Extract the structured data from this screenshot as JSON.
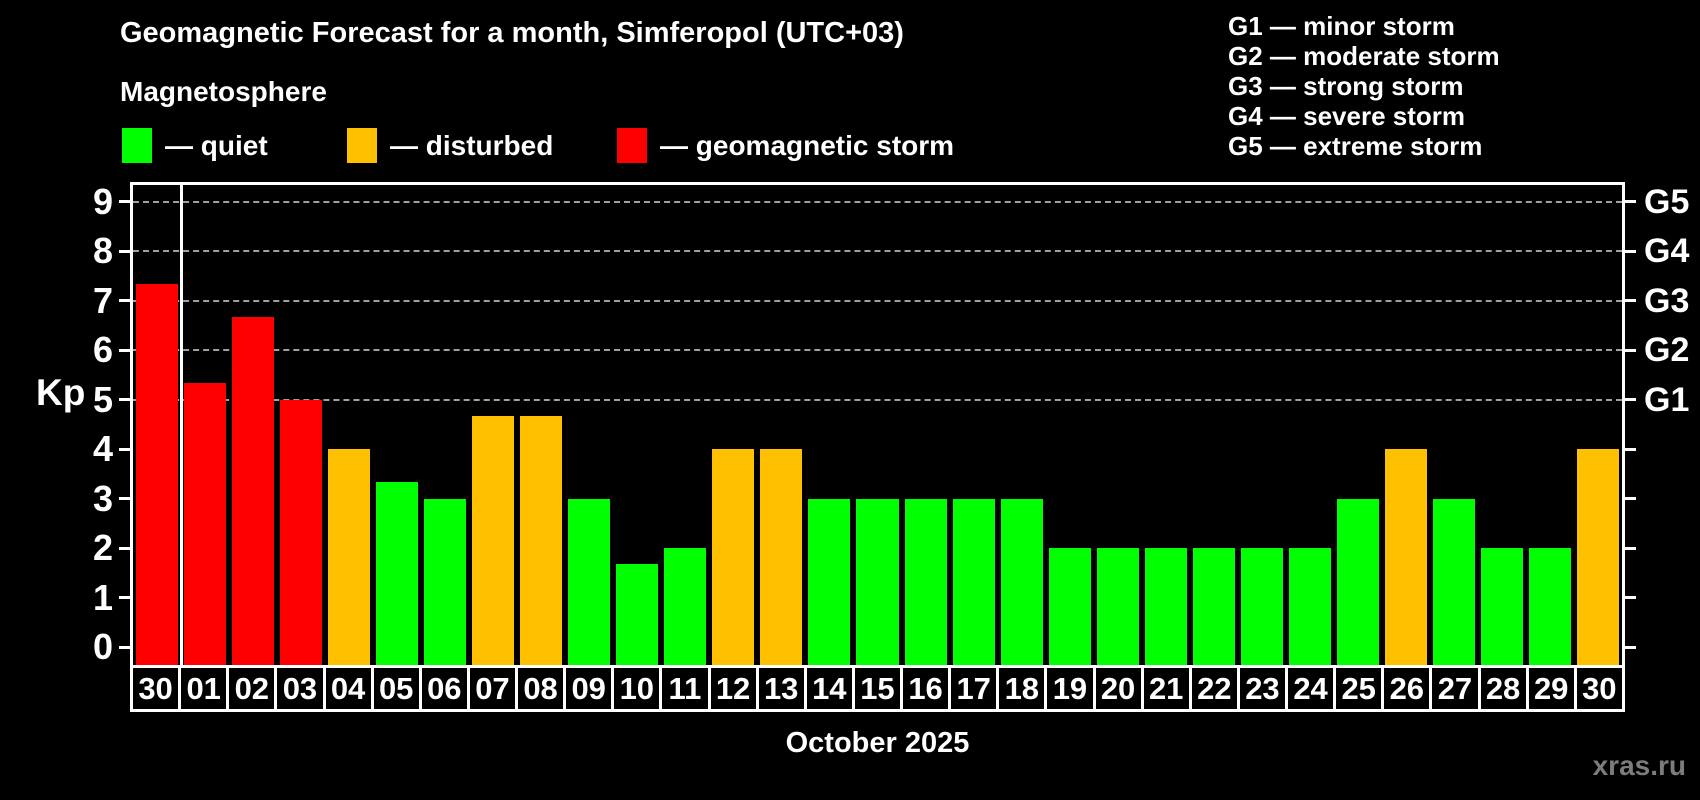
{
  "page": {
    "title": "Geomagnetic Forecast for a month, Simferopol (UTC+03)",
    "subtitle": "Magnetosphere",
    "month_label": "October 2025",
    "watermark": "xras.ru"
  },
  "colors": {
    "background": "#000000",
    "quiet": "#00ff00",
    "disturbed": "#ffc000",
    "storm": "#ff0000",
    "gridline": "#a0a0a0",
    "axis": "#ffffff",
    "watermark_text": "#7c7c7c"
  },
  "legend": [
    {
      "status": "quiet",
      "label": "— quiet",
      "color": "#00ff00"
    },
    {
      "status": "disturbed",
      "label": "— disturbed",
      "color": "#ffc000"
    },
    {
      "status": "storm",
      "label": "— geomagnetic storm",
      "color": "#ff0000"
    }
  ],
  "g_scale_legend": [
    "G1 — minor storm",
    "G2 — moderate storm",
    "G3 — strong storm",
    "G4 — severe storm",
    "G5 — extreme storm"
  ],
  "axis": {
    "y_label": "Kp",
    "y_ticks": [
      0,
      1,
      2,
      3,
      4,
      5,
      6,
      7,
      8,
      9
    ],
    "g_labels": [
      {
        "kp": 5,
        "label": "G1"
      },
      {
        "kp": 6,
        "label": "G2"
      },
      {
        "kp": 7,
        "label": "G3"
      },
      {
        "kp": 8,
        "label": "G4"
      },
      {
        "kp": 9,
        "label": "G5"
      }
    ]
  },
  "chart_data": {
    "type": "bar",
    "title": "Geomagnetic Forecast for a month, Simferopol (UTC+03)",
    "xlabel": "October 2025",
    "ylabel": "Kp",
    "ylim": [
      0,
      9
    ],
    "grid": "horizontal dashed lines at Kp 5,6,7,8,9 (G1-G5)",
    "legend_position": "top",
    "categories": [
      "30",
      "01",
      "02",
      "03",
      "04",
      "05",
      "06",
      "07",
      "08",
      "09",
      "10",
      "11",
      "12",
      "13",
      "14",
      "15",
      "16",
      "17",
      "18",
      "19",
      "20",
      "21",
      "22",
      "23",
      "24",
      "25",
      "26",
      "27",
      "28",
      "29",
      "30"
    ],
    "values": [
      7.33,
      5.33,
      6.67,
      5.0,
      4.0,
      3.33,
      3.0,
      4.67,
      4.67,
      3.0,
      1.67,
      2.0,
      4.0,
      4.0,
      3.0,
      3.0,
      3.0,
      3.0,
      3.0,
      2.0,
      2.0,
      2.0,
      2.0,
      2.0,
      2.0,
      3.0,
      4.0,
      3.0,
      2.0,
      2.0,
      4.0
    ],
    "statuses": [
      "storm",
      "storm",
      "storm",
      "storm",
      "disturbed",
      "quiet",
      "quiet",
      "disturbed",
      "disturbed",
      "quiet",
      "quiet",
      "quiet",
      "disturbed",
      "disturbed",
      "quiet",
      "quiet",
      "quiet",
      "quiet",
      "quiet",
      "quiet",
      "quiet",
      "quiet",
      "quiet",
      "quiet",
      "quiet",
      "quiet",
      "disturbed",
      "quiet",
      "quiet",
      "quiet",
      "disturbed"
    ],
    "month_separator_after_index": 0
  }
}
